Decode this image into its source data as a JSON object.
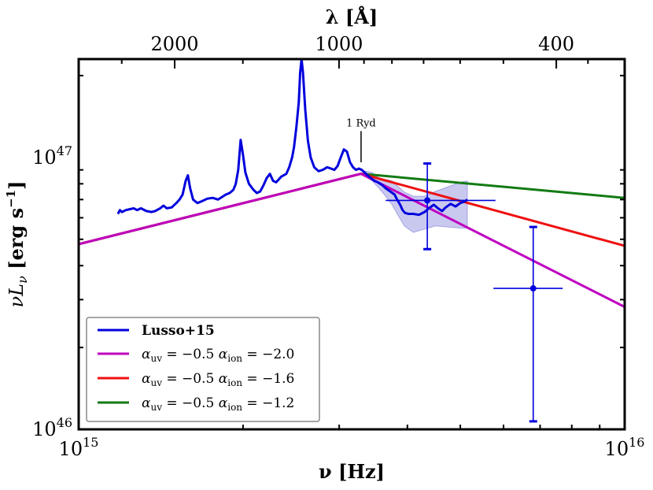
{
  "chart_data": {
    "type": "line",
    "xscale": "log",
    "yscale": "log",
    "x_label": "ν [Hz]",
    "y_label": "νL",
    "y_label_sub": "ν",
    "y_label_unit_open": " [erg s",
    "y_label_unit_sup": "−1",
    "y_label_unit_close": "]",
    "top_x_label": "λ [Å]",
    "xlim": [
      1000000000000000.0,
      1e+16
    ],
    "ylim": [
      1e+46,
      2.3e+47
    ],
    "x_ticks": [
      {
        "value": 1000000000000000.0,
        "base": "10",
        "exp": "15"
      },
      {
        "value": 1e+16,
        "base": "10",
        "exp": "16"
      }
    ],
    "y_ticks": [
      {
        "value": 1e+46,
        "base": "10",
        "exp": "46"
      },
      {
        "value": 1e+47,
        "base": "10",
        "exp": "47"
      }
    ],
    "top_ticks": [
      {
        "wavelength_A": 2000,
        "label": "2000"
      },
      {
        "wavelength_A": 1000,
        "label": "1000"
      },
      {
        "wavelength_A": 400,
        "label": "400"
      }
    ],
    "annotation": {
      "text": "1 Ryd",
      "x": 3290000000000000.0,
      "y": 9.6e+46,
      "line_top": 1.25e+47
    },
    "colors": {
      "lusso": "#0000dd",
      "magenta": "#bf00bf",
      "red": "#ee1111",
      "green": "#137a13",
      "band": "#8888dd"
    },
    "series": [
      {
        "name": "Lusso+15",
        "color": "#0000dd",
        "points": [
          [
            1180000000000000.0,
            6.2e+46
          ],
          [
            1190000000000000.0,
            6.4e+46
          ],
          [
            1200000000000000.0,
            6.3e+46
          ],
          [
            1220000000000000.0,
            6.4e+46
          ],
          [
            1240000000000000.0,
            6.45e+46
          ],
          [
            1260000000000000.0,
            6.5e+46
          ],
          [
            1280000000000000.0,
            6.4e+46
          ],
          [
            1300000000000000.0,
            6.5e+46
          ],
          [
            1330000000000000.0,
            6.35e+46
          ],
          [
            1360000000000000.0,
            6.3e+46
          ],
          [
            1380000000000000.0,
            6.35e+46
          ],
          [
            1410000000000000.0,
            6.5e+46
          ],
          [
            1430000000000000.0,
            6.65e+46
          ],
          [
            1450000000000000.0,
            6.5e+46
          ],
          [
            1480000000000000.0,
            6.55e+46
          ],
          [
            1510000000000000.0,
            6.8e+46
          ],
          [
            1530000000000000.0,
            7e+46
          ],
          [
            1550000000000000.0,
            7.3e+46
          ],
          [
            1570000000000000.0,
            8.2e+46
          ],
          [
            1585000000000000.0,
            8.6e+46
          ],
          [
            1600000000000000.0,
            7.7e+46
          ],
          [
            1620000000000000.0,
            7e+46
          ],
          [
            1650000000000000.0,
            6.8e+46
          ],
          [
            1680000000000000.0,
            6.9e+46
          ],
          [
            1720000000000000.0,
            7.05e+46
          ],
          [
            1760000000000000.0,
            7.1e+46
          ],
          [
            1800000000000000.0,
            7e+46
          ],
          [
            1830000000000000.0,
            7.15e+46
          ],
          [
            1860000000000000.0,
            7.3e+46
          ],
          [
            1890000000000000.0,
            7.4e+46
          ],
          [
            1920000000000000.0,
            7.6e+46
          ],
          [
            1940000000000000.0,
            8e+46
          ],
          [
            1960000000000000.0,
            9e+46
          ],
          [
            1980000000000000.0,
            1.16e+47
          ],
          [
            2000000000000000.0,
            1.02e+47
          ],
          [
            2020000000000000.0,
            8.8e+46
          ],
          [
            2050000000000000.0,
            8e+46
          ],
          [
            2090000000000000.0,
            7.6e+46
          ],
          [
            2120000000000000.0,
            7.4e+46
          ],
          [
            2150000000000000.0,
            7.5e+46
          ],
          [
            2180000000000000.0,
            7.9e+46
          ],
          [
            2210000000000000.0,
            8.4e+46
          ],
          [
            2240000000000000.0,
            8.7e+46
          ],
          [
            2270000000000000.0,
            8.2e+46
          ],
          [
            2300000000000000.0,
            8.1e+46
          ],
          [
            2350000000000000.0,
            8.5e+46
          ],
          [
            2400000000000000.0,
            8.7e+46
          ],
          [
            2430000000000000.0,
            9.2e+46
          ],
          [
            2460000000000000.0,
            1e+47
          ],
          [
            2480000000000000.0,
            1.09e+47
          ],
          [
            2505000000000000.0,
            1.3e+47
          ],
          [
            2530000000000000.0,
            1.6e+47
          ],
          [
            2545000000000000.0,
            2.05e+47
          ],
          [
            2560000000000000.0,
            2.3e+47
          ],
          [
            2575000000000000.0,
            2.05e+47
          ],
          [
            2600000000000000.0,
            1.5e+47
          ],
          [
            2630000000000000.0,
            1.15e+47
          ],
          [
            2660000000000000.0,
            1e+47
          ],
          [
            2700000000000000.0,
            9.2e+46
          ],
          [
            2750000000000000.0,
            8.9e+46
          ],
          [
            2800000000000000.0,
            9e+46
          ],
          [
            2850000000000000.0,
            9.2e+46
          ],
          [
            2900000000000000.0,
            9.1e+46
          ],
          [
            2940000000000000.0,
            9e+46
          ],
          [
            2980000000000000.0,
            9.3e+46
          ],
          [
            3020000000000000.0,
            1e+47
          ],
          [
            3060000000000000.0,
            1.07e+47
          ],
          [
            3100000000000000.0,
            1.05e+47
          ],
          [
            3140000000000000.0,
            9.6e+46
          ],
          [
            3180000000000000.0,
            9.2e+46
          ],
          [
            3220000000000000.0,
            9e+46
          ],
          [
            3260000000000000.0,
            9.1e+46
          ],
          [
            3300000000000000.0,
            9e+46
          ],
          [
            3340000000000000.0,
            8.8e+46
          ],
          [
            3380000000000000.0,
            8.6e+46
          ],
          [
            3430000000000000.0,
            8.4e+46
          ],
          [
            3480000000000000.0,
            8.2e+46
          ],
          [
            3530000000000000.0,
            8.1e+46
          ],
          [
            3600000000000000.0,
            7.9e+46
          ],
          [
            3650000000000000.0,
            7.7e+46
          ],
          [
            3720000000000000.0,
            7.5e+46
          ],
          [
            3790000000000000.0,
            7.3e+46
          ],
          [
            3830000000000000.0,
            7e+46
          ],
          [
            3880000000000000.0,
            6.7e+46
          ],
          [
            3920000000000000.0,
            6.4e+46
          ],
          [
            3960000000000000.0,
            6.25e+46
          ],
          [
            4020000000000000.0,
            6.2e+46
          ],
          [
            4100000000000000.0,
            6.2e+46
          ],
          [
            4200000000000000.0,
            6.15e+46
          ],
          [
            4300000000000000.0,
            6.3e+46
          ],
          [
            4380000000000000.0,
            6.5e+46
          ],
          [
            4470000000000000.0,
            6.7e+46
          ],
          [
            4550000000000000.0,
            6.5e+46
          ],
          [
            4630000000000000.0,
            6.35e+46
          ],
          [
            4700000000000000.0,
            6.55e+46
          ],
          [
            4800000000000000.0,
            6.75e+46
          ],
          [
            4900000000000000.0,
            6.6e+46
          ],
          [
            5000000000000000.0,
            6.8e+46
          ],
          [
            5100000000000000.0,
            6.9e+46
          ],
          [
            5150000000000000.0,
            7e+46
          ]
        ]
      },
      {
        "name": "α_uv = −0.5 α_ion = −2.0",
        "legend_parts": {
          "alpha": "α",
          "uv": "uv",
          "eq1": " = −0.5 ",
          "ion": "ion",
          "eq2": " = −2.0"
        },
        "color": "#bf00bf",
        "alpha_uv": -0.5,
        "alpha_ion": -2.0,
        "points": [
          [
            1000000000000000.0,
            4.8e+46
          ],
          [
            3290000000000000.0,
            8.71e+46
          ],
          [
            1e+16,
            2.82e+46
          ]
        ]
      },
      {
        "name": "α_uv = −0.5 α_ion = −1.6",
        "legend_parts": {
          "alpha": "α",
          "uv": "uv",
          "eq1": " = −0.5 ",
          "ion": "ion",
          "eq2": " = −1.6"
        },
        "color": "#ee1111",
        "alpha_uv": -0.5,
        "alpha_ion": -1.6,
        "points": [
          [
            1000000000000000.0,
            4.8e+46
          ],
          [
            3290000000000000.0,
            8.71e+46
          ],
          [
            1e+16,
            4.73e+46
          ]
        ]
      },
      {
        "name": "α_uv = −0.5 α_ion = −1.2",
        "legend_parts": {
          "alpha": "α",
          "uv": "uv",
          "eq1": " = −0.5 ",
          "ion": "ion",
          "eq2": " = −1.2"
        },
        "color": "#137a13",
        "alpha_uv": -0.5,
        "alpha_ion": -1.2,
        "points": [
          [
            1000000000000000.0,
            4.8e+46
          ],
          [
            3290000000000000.0,
            8.71e+46
          ],
          [
            1e+16,
            7.1e+46
          ]
        ]
      }
    ],
    "uncertainty_band": {
      "color": "#8888dd",
      "upper": [
        [
          3350000000000000.0,
          8.9e+46
        ],
        [
          3450000000000000.0,
          8.8e+46
        ],
        [
          3550000000000000.0,
          8.4e+46
        ],
        [
          3650000000000000.0,
          8.3e+46
        ],
        [
          3750000000000000.0,
          8.2e+46
        ],
        [
          3850000000000000.0,
          7.8e+46
        ],
        [
          3950000000000000.0,
          7.45e+46
        ],
        [
          4100000000000000.0,
          7.2e+46
        ],
        [
          4300000000000000.0,
          7.2e+46
        ],
        [
          4500000000000000.0,
          7.5e+46
        ],
        [
          4750000000000000.0,
          7.8e+46
        ],
        [
          5000000000000000.0,
          8.1e+46
        ],
        [
          5150000000000000.0,
          8.2e+46
        ]
      ],
      "lower": [
        [
          3350000000000000.0,
          8.5e+46
        ],
        [
          3450000000000000.0,
          8.2e+46
        ],
        [
          3550000000000000.0,
          7.7e+46
        ],
        [
          3650000000000000.0,
          7.2e+46
        ],
        [
          3750000000000000.0,
          6.7e+46
        ],
        [
          3850000000000000.0,
          6.1e+46
        ],
        [
          3950000000000000.0,
          5.6e+46
        ],
        [
          4100000000000000.0,
          5.3e+46
        ],
        [
          4300000000000000.0,
          5.45e+46
        ],
        [
          4500000000000000.0,
          5.6e+46
        ],
        [
          4750000000000000.0,
          5.55e+46
        ],
        [
          5000000000000000.0,
          5.5e+46
        ],
        [
          5150000000000000.0,
          5.5e+46
        ]
      ]
    },
    "error_points": [
      {
        "x": 4350000000000000.0,
        "y": 6.95e+46,
        "x_err": [
          3650000000000000.0,
          5800000000000000.0
        ],
        "y_err": [
          4.6e+46,
          9.5e+46
        ]
      },
      {
        "x": 6800000000000000.0,
        "y": 3.3e+46,
        "x_err": [
          5750000000000000.0,
          7700000000000000.0
        ],
        "y_err": [
          1.07e+46,
          5.55e+46
        ]
      }
    ],
    "legend": {
      "position": "lower-left"
    }
  }
}
